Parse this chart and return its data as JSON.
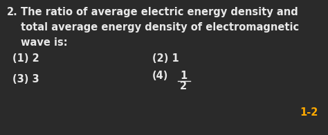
{
  "background_color": "#2a2a2a",
  "question_number": "2.",
  "question_text_line1": "The ratio of average electric energy density and",
  "question_text_line2": "total average energy density of electromagnetic",
  "question_text_line3": "wave is:",
  "opt1": "(1) 2",
  "opt2": "(2) 1",
  "opt3": "(3) 3",
  "opt4_label": "(4)",
  "opt4_num": "1",
  "opt4_den": "2",
  "answer_label": "1-2",
  "text_color": "#e8e8e8",
  "answer_color": "#ffaa00",
  "font_size_q": 10.5,
  "font_size_opt": 10.5,
  "font_size_ans": 10.5
}
